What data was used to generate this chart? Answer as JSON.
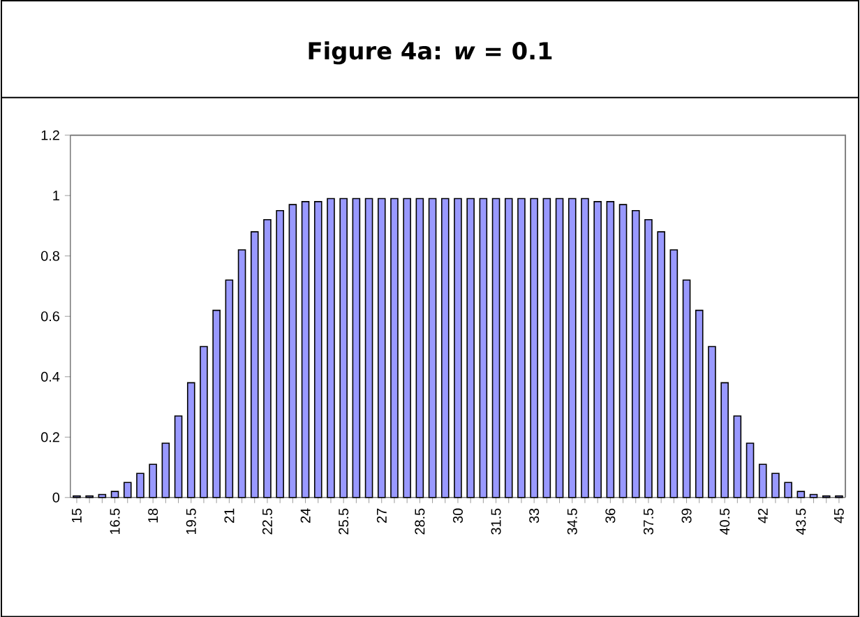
{
  "chart_data": {
    "type": "bar",
    "title": "Figure 4a: *w* = 0.1",
    "categories": [
      "15",
      null,
      null,
      "16.5",
      null,
      null,
      "18",
      null,
      null,
      "19.5",
      null,
      null,
      "21",
      null,
      null,
      "22.5",
      null,
      null,
      "24",
      null,
      null,
      "25.5",
      null,
      null,
      "27",
      null,
      null,
      "28.5",
      null,
      null,
      "30",
      null,
      null,
      "31.5",
      null,
      null,
      "33",
      null,
      null,
      "34.5",
      null,
      null,
      "36",
      null,
      null,
      "37.5",
      null,
      null,
      "39",
      null,
      null,
      "40.5",
      null,
      null,
      "42",
      null,
      null,
      "43.5",
      null,
      null,
      "45"
    ],
    "values": [
      0.005,
      0.005,
      0.01,
      0.02,
      0.05,
      0.08,
      0.11,
      0.18,
      0.27,
      0.38,
      0.5,
      0.62,
      0.72,
      0.82,
      0.88,
      0.92,
      0.95,
      0.97,
      0.98,
      0.98,
      0.99,
      0.99,
      0.99,
      0.99,
      0.99,
      0.99,
      0.99,
      0.99,
      0.99,
      0.99,
      0.99,
      0.99,
      0.99,
      0.99,
      0.99,
      0.99,
      0.99,
      0.99,
      0.99,
      0.99,
      0.99,
      0.98,
      0.98,
      0.97,
      0.95,
      0.92,
      0.88,
      0.82,
      0.72,
      0.62,
      0.5,
      0.38,
      0.27,
      0.18,
      0.11,
      0.08,
      0.05,
      0.02,
      0.01,
      0.005,
      0.005
    ],
    "color": "#9999ff",
    "ylim": [
      0,
      1.2
    ],
    "yticks": [
      0,
      0.2,
      0.4,
      0.6,
      0.8,
      1,
      1.2
    ]
  }
}
